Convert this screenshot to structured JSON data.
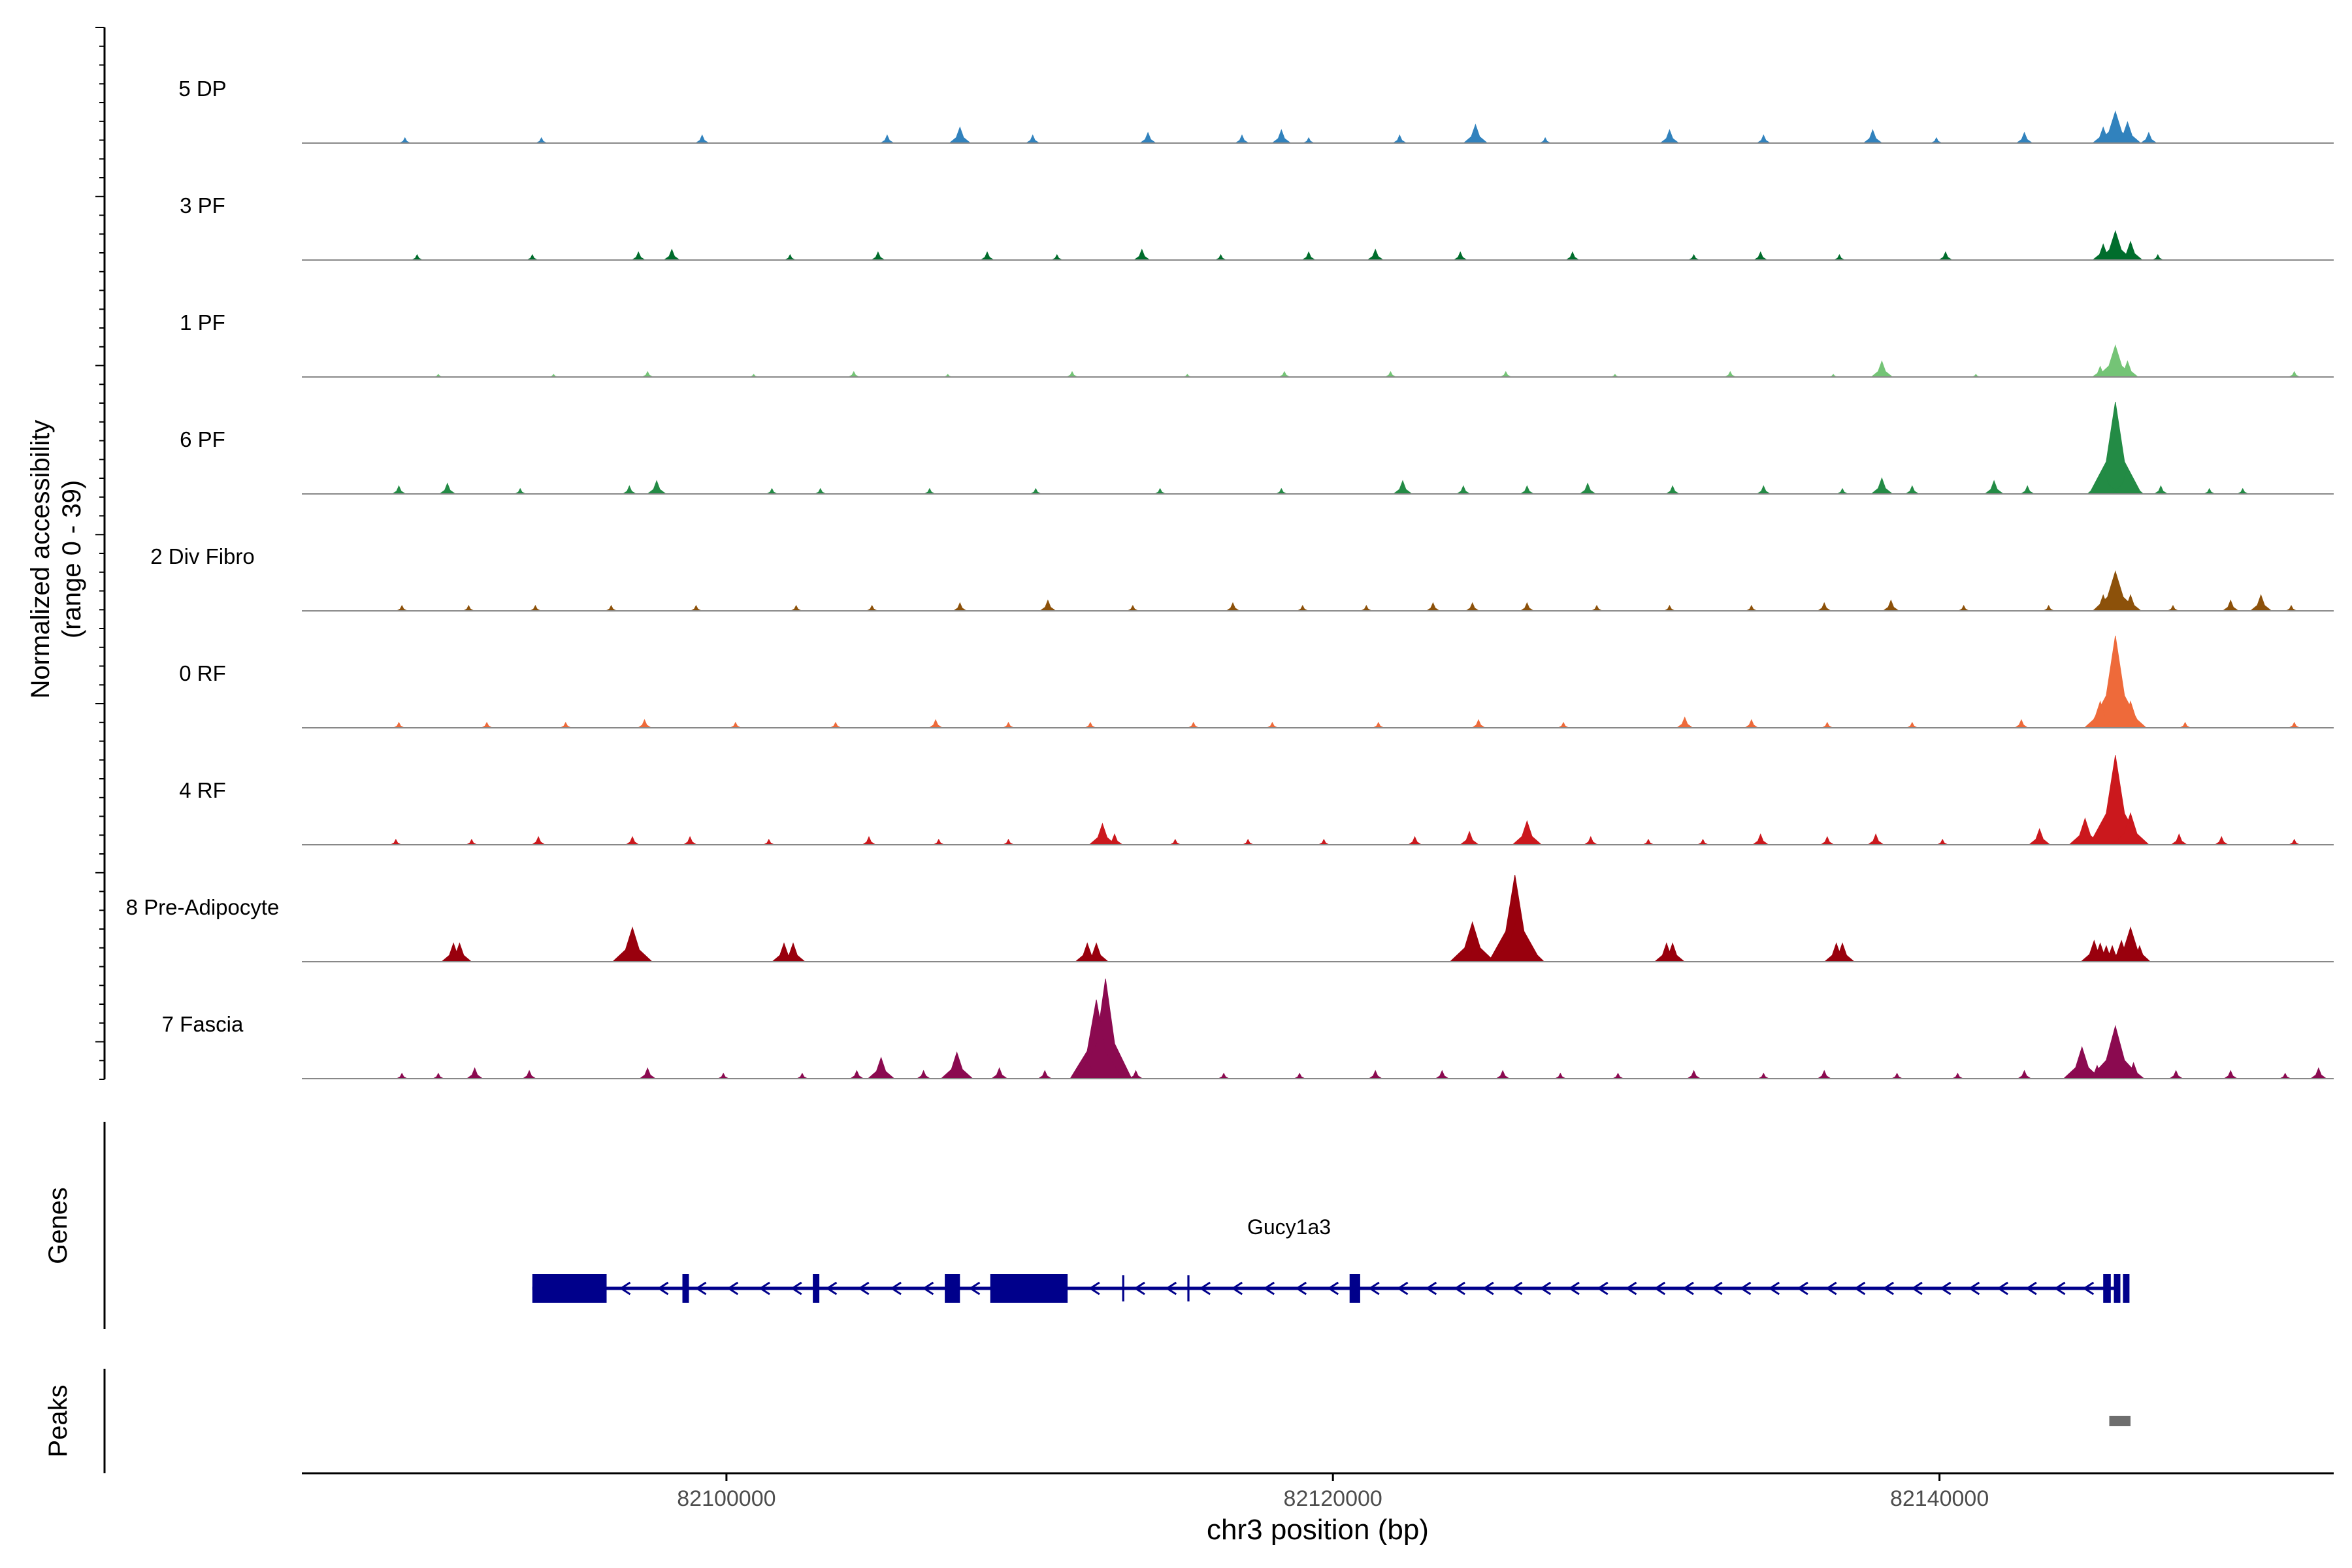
{
  "chart_data": {
    "type": "area",
    "title": "",
    "ylabel_line1": "Normalized accessibility",
    "ylabel_line2": "(range 0 - 39)",
    "yrange": [
      0,
      39
    ],
    "xlabel": "chr3 position (bp)",
    "xlim": [
      82086000,
      82153000
    ],
    "xticks": [
      82100000,
      82120000,
      82140000
    ],
    "xtick_labels": [
      "82100000",
      "82120000",
      "82140000"
    ],
    "tracks": [
      {
        "name": "5 DP",
        "color": "#3182bd",
        "peaks": [
          [
            82089400,
            2
          ],
          [
            82093900,
            2
          ],
          [
            82099200,
            3
          ],
          [
            82105300,
            3
          ],
          [
            82107700,
            6
          ],
          [
            82110100,
            3
          ],
          [
            82113900,
            4
          ],
          [
            82117000,
            3
          ],
          [
            82118300,
            5
          ],
          [
            82119200,
            2
          ],
          [
            82122200,
            3
          ],
          [
            82124700,
            7
          ],
          [
            82127000,
            2
          ],
          [
            82131100,
            5
          ],
          [
            82134200,
            3
          ],
          [
            82137800,
            5
          ],
          [
            82139900,
            2
          ],
          [
            82142800,
            4
          ],
          [
            82145400,
            6
          ],
          [
            82145800,
            12
          ],
          [
            82146200,
            8
          ],
          [
            82146900,
            4
          ]
        ]
      },
      {
        "name": "3 PF",
        "color": "#006d2c",
        "peaks": [
          [
            82089800,
            2
          ],
          [
            82093600,
            2
          ],
          [
            82097100,
            3
          ],
          [
            82098200,
            4
          ],
          [
            82102100,
            2
          ],
          [
            82105000,
            3
          ],
          [
            82108600,
            3
          ],
          [
            82110900,
            2
          ],
          [
            82113700,
            4
          ],
          [
            82116300,
            2
          ],
          [
            82119200,
            3
          ],
          [
            82121400,
            4
          ],
          [
            82124200,
            3
          ],
          [
            82127900,
            3
          ],
          [
            82131900,
            2
          ],
          [
            82134100,
            3
          ],
          [
            82136700,
            2
          ],
          [
            82140200,
            3
          ],
          [
            82145400,
            6
          ],
          [
            82145800,
            11
          ],
          [
            82146300,
            7
          ],
          [
            82147200,
            2
          ]
        ]
      },
      {
        "name": "1 PF",
        "color": "#74c476",
        "peaks": [
          [
            82090500,
            1
          ],
          [
            82094300,
            1
          ],
          [
            82097400,
            2
          ],
          [
            82100900,
            1
          ],
          [
            82104200,
            2
          ],
          [
            82107300,
            1
          ],
          [
            82111400,
            2
          ],
          [
            82115200,
            1
          ],
          [
            82118400,
            2
          ],
          [
            82121900,
            2
          ],
          [
            82125700,
            2
          ],
          [
            82129300,
            1
          ],
          [
            82133100,
            2
          ],
          [
            82136500,
            1
          ],
          [
            82138100,
            6
          ],
          [
            82141200,
            1
          ],
          [
            82145300,
            4
          ],
          [
            82145800,
            12
          ],
          [
            82146200,
            6
          ],
          [
            82151700,
            2
          ]
        ]
      },
      {
        "name": "6 PF",
        "color": "#238b45",
        "peaks": [
          [
            82089200,
            3
          ],
          [
            82090800,
            4
          ],
          [
            82093200,
            2
          ],
          [
            82096800,
            3
          ],
          [
            82097700,
            5
          ],
          [
            82101500,
            2
          ],
          [
            82103100,
            2
          ],
          [
            82106700,
            2
          ],
          [
            82110200,
            2
          ],
          [
            82114300,
            2
          ],
          [
            82118300,
            2
          ],
          [
            82122300,
            5
          ],
          [
            82124300,
            3
          ],
          [
            82126400,
            3
          ],
          [
            82128400,
            4
          ],
          [
            82131200,
            3
          ],
          [
            82134200,
            3
          ],
          [
            82136800,
            2
          ],
          [
            82138100,
            6
          ],
          [
            82139100,
            3
          ],
          [
            82141800,
            5
          ],
          [
            82142900,
            3
          ],
          [
            82145400,
            10
          ],
          [
            82145800,
            35
          ],
          [
            82146200,
            10
          ],
          [
            82147300,
            3
          ],
          [
            82148900,
            2
          ],
          [
            82150000,
            2
          ]
        ]
      },
      {
        "name": "2 Div Fibro",
        "color": "#8c510a",
        "peaks": [
          [
            82089300,
            2
          ],
          [
            82091500,
            2
          ],
          [
            82093700,
            2
          ],
          [
            82096200,
            2
          ],
          [
            82099000,
            2
          ],
          [
            82102300,
            2
          ],
          [
            82104800,
            2
          ],
          [
            82107700,
            3
          ],
          [
            82110600,
            4
          ],
          [
            82113400,
            2
          ],
          [
            82116700,
            3
          ],
          [
            82119000,
            2
          ],
          [
            82121100,
            2
          ],
          [
            82123300,
            3
          ],
          [
            82124600,
            3
          ],
          [
            82126400,
            3
          ],
          [
            82128700,
            2
          ],
          [
            82131100,
            2
          ],
          [
            82133800,
            2
          ],
          [
            82136200,
            3
          ],
          [
            82138400,
            4
          ],
          [
            82140800,
            2
          ],
          [
            82143600,
            2
          ],
          [
            82145400,
            6
          ],
          [
            82145800,
            15
          ],
          [
            82146300,
            6
          ],
          [
            82147700,
            2
          ],
          [
            82149600,
            4
          ],
          [
            82150600,
            6
          ],
          [
            82151600,
            2
          ]
        ]
      },
      {
        "name": "0 RF",
        "color": "#ee6a3a",
        "peaks": [
          [
            82089200,
            2
          ],
          [
            82092100,
            2
          ],
          [
            82094700,
            2
          ],
          [
            82097300,
            3
          ],
          [
            82100300,
            2
          ],
          [
            82103600,
            2
          ],
          [
            82106900,
            3
          ],
          [
            82109300,
            2
          ],
          [
            82112000,
            2
          ],
          [
            82115400,
            2
          ],
          [
            82118000,
            2
          ],
          [
            82121500,
            2
          ],
          [
            82124800,
            3
          ],
          [
            82127600,
            2
          ],
          [
            82131600,
            4
          ],
          [
            82133800,
            3
          ],
          [
            82136300,
            2
          ],
          [
            82139100,
            2
          ],
          [
            82142700,
            3
          ],
          [
            82145300,
            10
          ],
          [
            82145800,
            35
          ],
          [
            82146300,
            10
          ],
          [
            82148100,
            2
          ],
          [
            82151700,
            2
          ]
        ]
      },
      {
        "name": "4 RF",
        "color": "#cb181d",
        "peaks": [
          [
            82089100,
            2
          ],
          [
            82091600,
            2
          ],
          [
            82093800,
            3
          ],
          [
            82096900,
            3
          ],
          [
            82098800,
            3
          ],
          [
            82101400,
            2
          ],
          [
            82104700,
            3
          ],
          [
            82107000,
            2
          ],
          [
            82109300,
            2
          ],
          [
            82112400,
            8
          ],
          [
            82112800,
            4
          ],
          [
            82114800,
            2
          ],
          [
            82117200,
            2
          ],
          [
            82119700,
            2
          ],
          [
            82122700,
            3
          ],
          [
            82124500,
            5
          ],
          [
            82126400,
            9
          ],
          [
            82128500,
            3
          ],
          [
            82130400,
            2
          ],
          [
            82132200,
            2
          ],
          [
            82134100,
            4
          ],
          [
            82136300,
            3
          ],
          [
            82137900,
            4
          ],
          [
            82140100,
            2
          ],
          [
            82143300,
            6
          ],
          [
            82144800,
            10
          ],
          [
            82145800,
            34
          ],
          [
            82146300,
            12
          ],
          [
            82147900,
            4
          ],
          [
            82149300,
            3
          ],
          [
            82151700,
            2
          ]
        ]
      },
      {
        "name": "8 Pre-Adipocyte",
        "color": "#99000d",
        "peaks": [
          [
            82091000,
            7
          ],
          [
            82091200,
            7
          ],
          [
            82096900,
            13
          ],
          [
            82101900,
            7
          ],
          [
            82102200,
            7
          ],
          [
            82111900,
            7
          ],
          [
            82112200,
            7
          ],
          [
            82124600,
            15
          ],
          [
            82124700,
            8
          ],
          [
            82126000,
            33
          ],
          [
            82126100,
            18
          ],
          [
            82131000,
            7
          ],
          [
            82131200,
            7
          ],
          [
            82136600,
            7
          ],
          [
            82136800,
            7
          ],
          [
            82145100,
            8
          ],
          [
            82145300,
            7
          ],
          [
            82145500,
            6
          ],
          [
            82145700,
            6
          ],
          [
            82146000,
            8
          ],
          [
            82146300,
            13
          ],
          [
            82146600,
            6
          ]
        ]
      },
      {
        "name": "7 Fascia",
        "color": "#8b0a50",
        "peaks": [
          [
            82089300,
            2
          ],
          [
            82090500,
            2
          ],
          [
            82091700,
            4
          ],
          [
            82093500,
            3
          ],
          [
            82097400,
            4
          ],
          [
            82099900,
            2
          ],
          [
            82102500,
            2
          ],
          [
            82104300,
            3
          ],
          [
            82105100,
            8
          ],
          [
            82106500,
            3
          ],
          [
            82107600,
            10
          ],
          [
            82109000,
            4
          ],
          [
            82110500,
            3
          ],
          [
            82111900,
            8
          ],
          [
            82112200,
            30
          ],
          [
            82112500,
            38
          ],
          [
            82113500,
            3
          ],
          [
            82116400,
            2
          ],
          [
            82118900,
            2
          ],
          [
            82121400,
            3
          ],
          [
            82123600,
            3
          ],
          [
            82125600,
            3
          ],
          [
            82127500,
            2
          ],
          [
            82129400,
            2
          ],
          [
            82131900,
            3
          ],
          [
            82134200,
            2
          ],
          [
            82136200,
            3
          ],
          [
            82138600,
            2
          ],
          [
            82140600,
            2
          ],
          [
            82142800,
            3
          ],
          [
            82144700,
            12
          ],
          [
            82145200,
            5
          ],
          [
            82145800,
            20
          ],
          [
            82146400,
            6
          ],
          [
            82147800,
            3
          ],
          [
            82149600,
            3
          ],
          [
            82151400,
            2
          ],
          [
            82152500,
            4
          ]
        ]
      }
    ],
    "genes_label": "Genes",
    "gene": {
      "name": "Gucy1a3",
      "strand": "-",
      "start": 82093600,
      "end": 82145800,
      "color": "#00008b",
      "exons": [
        [
          82093600,
          82096050,
          "tall"
        ],
        [
          82098550,
          82098650,
          "tall"
        ],
        [
          82102850,
          82102950,
          "tall"
        ],
        [
          82107200,
          82107700,
          "tall"
        ],
        [
          82108700,
          82111250,
          "tall"
        ],
        [
          82113050,
          82113120,
          "thin"
        ],
        [
          82115200,
          82115270,
          "thin"
        ],
        [
          82120550,
          82120900,
          "tall"
        ],
        [
          82145400,
          82145650,
          "tall"
        ],
        [
          82145750,
          82145850,
          "tall"
        ],
        [
          82146050,
          82146200,
          "tall"
        ]
      ]
    },
    "peaks_label": "Peaks",
    "peak_regions": [
      [
        82145600,
        82146300
      ]
    ],
    "peak_color": "#6e6e6e"
  }
}
